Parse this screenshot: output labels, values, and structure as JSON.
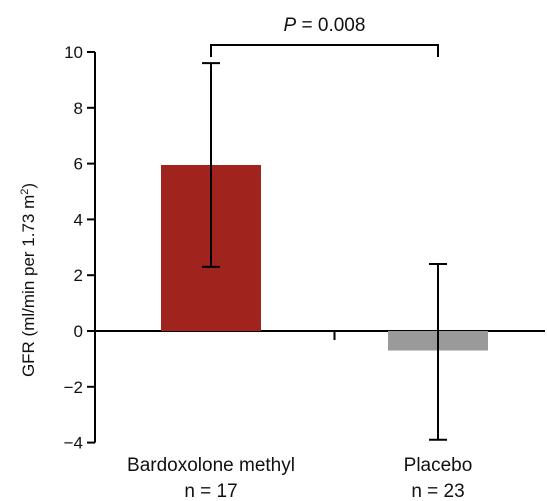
{
  "chart_data": {
    "type": "bar",
    "categories": [
      "Bardoxolone methyl",
      "Placebo"
    ],
    "sample_sizes": [
      "n = 17",
      "n = 23"
    ],
    "values": [
      5.95,
      -0.7
    ],
    "error_low": [
      2.3,
      -3.9
    ],
    "error_high": [
      9.6,
      2.4
    ],
    "colors": [
      "#a0231d",
      "#9a9a9a"
    ],
    "title": "",
    "xlabel": "",
    "ylabel": "GFR (ml/min per 1.73 m",
    "ylabel_superscript": "2",
    "ylabel_close": ")",
    "ylim": [
      -4,
      10
    ],
    "yticks": [
      "−4",
      "−2",
      "0",
      "2",
      "4",
      "6",
      "8",
      "10"
    ],
    "ytick_values": [
      -4,
      -2,
      0,
      2,
      4,
      6,
      8,
      10
    ],
    "grid": false,
    "annotation": {
      "p_symbol": "P",
      "p_text": " = 0.008",
      "brackets": [
        "Bardoxolone methyl",
        "Placebo"
      ]
    }
  }
}
